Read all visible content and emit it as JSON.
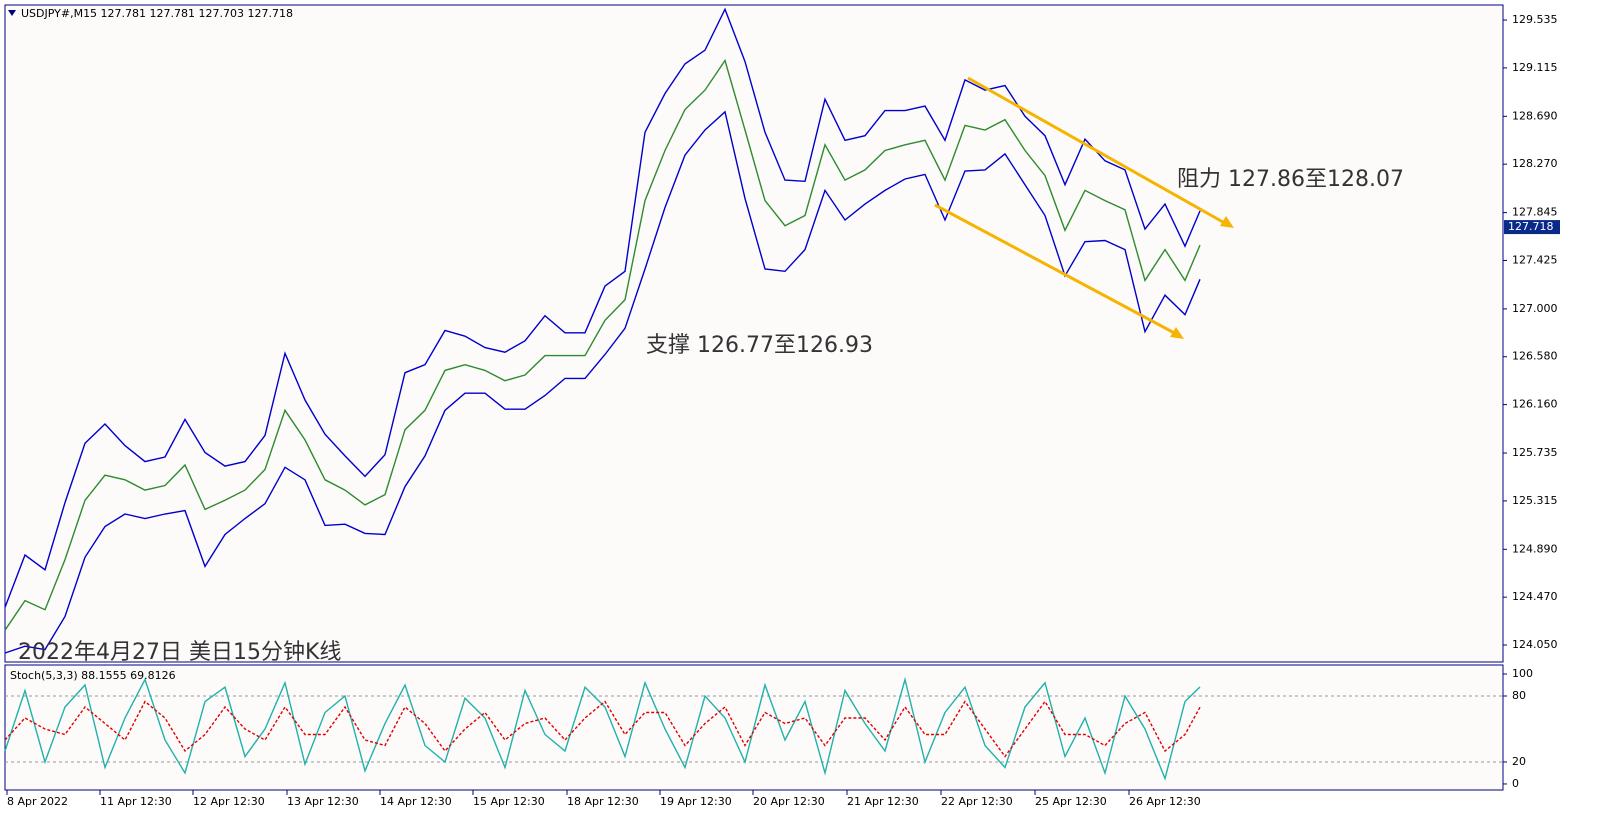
{
  "chart_data": [
    {
      "type": "line",
      "title": "USDJPY#,M15  127.781 127.781 127.703 127.718",
      "last_price": 127.718,
      "annotations": [
        "阻力 127.86至128.07",
        "支撑 126.77至126.93",
        "2022年4月27日 美日15分钟K线"
      ],
      "xlim": [
        0,
        1498
      ],
      "ylim": [
        123.901,
        129.667
      ],
      "yticks": [
        129.535,
        129.115,
        {
          "value": 128.69,
          "label": "128.690"
        },
        {
          "value": 128.27,
          "label": "128.270"
        },
        127.845,
        127.425,
        {
          "value": 127.0,
          "label": "127.000"
        },
        {
          "value": 126.58,
          "label": "126.580"
        },
        {
          "value": 126.16,
          "label": "126.160"
        },
        125.735,
        125.315,
        {
          "value": 124.89,
          "label": "124.890"
        },
        {
          "value": 124.47,
          "label": "124.470"
        },
        {
          "value": 124.05,
          "label": "124.050"
        }
      ],
      "x": [
        0,
        20,
        40,
        60,
        80,
        100,
        120,
        140,
        160,
        180,
        200,
        220,
        240,
        260,
        280,
        300,
        320,
        340,
        360,
        380,
        400,
        420,
        440,
        460,
        480,
        500,
        520,
        540,
        560,
        580,
        600,
        620,
        640,
        660,
        680,
        700,
        720,
        740,
        760,
        780,
        800,
        820,
        840,
        860,
        880,
        900,
        920,
        940,
        960,
        980,
        1000,
        1020,
        1040,
        1060,
        1080,
        1100,
        1120,
        1140,
        1160,
        1180,
        1195
      ],
      "series": [
        {
          "color": "#2e8b2e",
          "values": [
            124.18,
            124.44,
            124.36,
            124.8,
            125.32,
            125.54,
            125.5,
            125.41,
            125.45,
            125.63,
            125.24,
            125.32,
            125.41,
            125.59,
            126.11,
            125.85,
            125.5,
            125.41,
            125.28,
            125.37,
            125.94,
            126.11,
            126.46,
            126.51,
            126.46,
            126.37,
            126.42,
            126.59,
            126.59,
            126.59,
            126.9,
            127.08,
            127.95,
            128.39,
            128.75,
            128.92,
            129.18,
            128.57,
            127.95,
            127.73,
            127.82,
            128.44,
            128.13,
            128.22,
            128.39,
            128.44,
            128.48,
            128.13,
            128.61,
            128.57,
            128.66,
            128.39,
            128.17,
            127.69,
            128.04,
            127.95,
            127.87,
            127.25,
            127.52,
            127.25,
            127.56
          ]
        },
        {
          "color": "#0000cc",
          "values": [
            124.38,
            124.84,
            124.71,
            125.3,
            125.82,
            125.99,
            125.8,
            125.66,
            125.7,
            126.03,
            125.74,
            125.62,
            125.66,
            125.89,
            126.61,
            126.2,
            125.9,
            125.71,
            125.53,
            125.72,
            126.44,
            126.51,
            126.81,
            126.76,
            126.66,
            126.62,
            126.72,
            126.94,
            126.79,
            126.79,
            127.2,
            127.33,
            128.55,
            128.89,
            129.15,
            129.27,
            129.63,
            129.17,
            128.55,
            128.13,
            128.12,
            128.84,
            128.48,
            128.52,
            128.74,
            128.74,
            128.78,
            128.48,
            129.01,
            128.92,
            128.96,
            128.69,
            128.52,
            128.09,
            128.49,
            128.3,
            128.22,
            127.7,
            127.92,
            127.55,
            127.86
          ]
        },
        {
          "color": "#0000cc",
          "values": [
            123.98,
            124.04,
            124.01,
            124.3,
            124.82,
            125.09,
            125.2,
            125.16,
            125.2,
            125.23,
            124.74,
            125.02,
            125.16,
            125.29,
            125.61,
            125.5,
            125.1,
            125.11,
            125.03,
            125.02,
            125.44,
            125.71,
            126.11,
            126.26,
            126.26,
            126.12,
            126.12,
            126.24,
            126.39,
            126.39,
            126.6,
            126.83,
            127.35,
            127.89,
            128.35,
            128.57,
            128.73,
            127.97,
            127.35,
            127.33,
            127.52,
            128.04,
            127.78,
            127.92,
            128.04,
            128.14,
            128.18,
            127.78,
            128.21,
            128.22,
            128.36,
            128.09,
            127.82,
            127.29,
            127.59,
            127.6,
            127.52,
            126.8,
            127.12,
            126.95,
            127.26
          ]
        }
      ]
    },
    {
      "type": "line",
      "title": "Stoch(5,3,3) 88.1555 69.8126",
      "xlim": [
        0,
        1498
      ],
      "ylim": [
        -5.5,
        108.2
      ],
      "yticks": [
        100,
        80,
        20,
        0
      ],
      "levels": [
        80,
        20
      ],
      "xticks": [
        {
          "value": 2,
          "label": "8 Apr 2022"
        },
        {
          "value": 95,
          "label": "11 Apr 12:30"
        },
        {
          "value": 188,
          "label": "12 Apr 12:30"
        },
        {
          "value": 282,
          "label": "13 Apr 12:30"
        },
        {
          "value": 375,
          "label": "14 Apr 12:30"
        },
        {
          "value": 468,
          "label": "15 Apr 12:30"
        },
        {
          "value": 562,
          "label": "18 Apr 12:30"
        },
        {
          "value": 655,
          "label": "19 Apr 12:30"
        },
        {
          "value": 748,
          "label": "20 Apr 12:30"
        },
        {
          "value": 842,
          "label": "21 Apr 12:30"
        },
        {
          "value": 936,
          "label": "22 Apr 12:30"
        },
        {
          "value": 1030,
          "label": "25 Apr 12:30"
        },
        {
          "value": 1124,
          "label": "26 Apr 12:30"
        }
      ],
      "x": [
        0,
        20,
        40,
        60,
        80,
        100,
        120,
        140,
        160,
        180,
        200,
        220,
        240,
        260,
        280,
        300,
        320,
        340,
        360,
        380,
        400,
        420,
        440,
        460,
        480,
        500,
        520,
        540,
        560,
        580,
        600,
        620,
        640,
        660,
        680,
        700,
        720,
        740,
        760,
        780,
        800,
        820,
        840,
        860,
        880,
        900,
        920,
        940,
        960,
        980,
        1000,
        1020,
        1040,
        1060,
        1080,
        1100,
        1120,
        1140,
        1160,
        1180,
        1195
      ],
      "series": [
        {
          "color": "#20b2aa",
          "values": [
            30,
            85,
            20,
            70,
            90,
            15,
            60,
            95,
            40,
            10,
            75,
            88,
            25,
            50,
            92,
            18,
            65,
            80,
            12,
            55,
            90,
            35,
            20,
            78,
            60,
            15,
            85,
            45,
            30,
            88,
            70,
            25,
            92,
            50,
            15,
            80,
            60,
            20,
            90,
            40,
            75,
            10,
            85,
            55,
            30,
            95,
            20,
            65,
            88,
            35,
            15,
            70,
            92,
            25,
            60,
            10,
            80,
            50,
            5,
            75,
            88.1555
          ]
        },
        {
          "color": "#e00000",
          "values": [
            40,
            60,
            50,
            45,
            70,
            55,
            40,
            75,
            60,
            30,
            45,
            70,
            50,
            40,
            70,
            45,
            45,
            70,
            40,
            35,
            70,
            55,
            30,
            50,
            65,
            40,
            55,
            60,
            40,
            60,
            75,
            45,
            65,
            65,
            35,
            55,
            70,
            35,
            65,
            55,
            60,
            35,
            60,
            60,
            40,
            70,
            45,
            45,
            75,
            50,
            25,
            50,
            75,
            45,
            45,
            35,
            55,
            65,
            30,
            45,
            69.8126
          ]
        }
      ]
    }
  ]
}
